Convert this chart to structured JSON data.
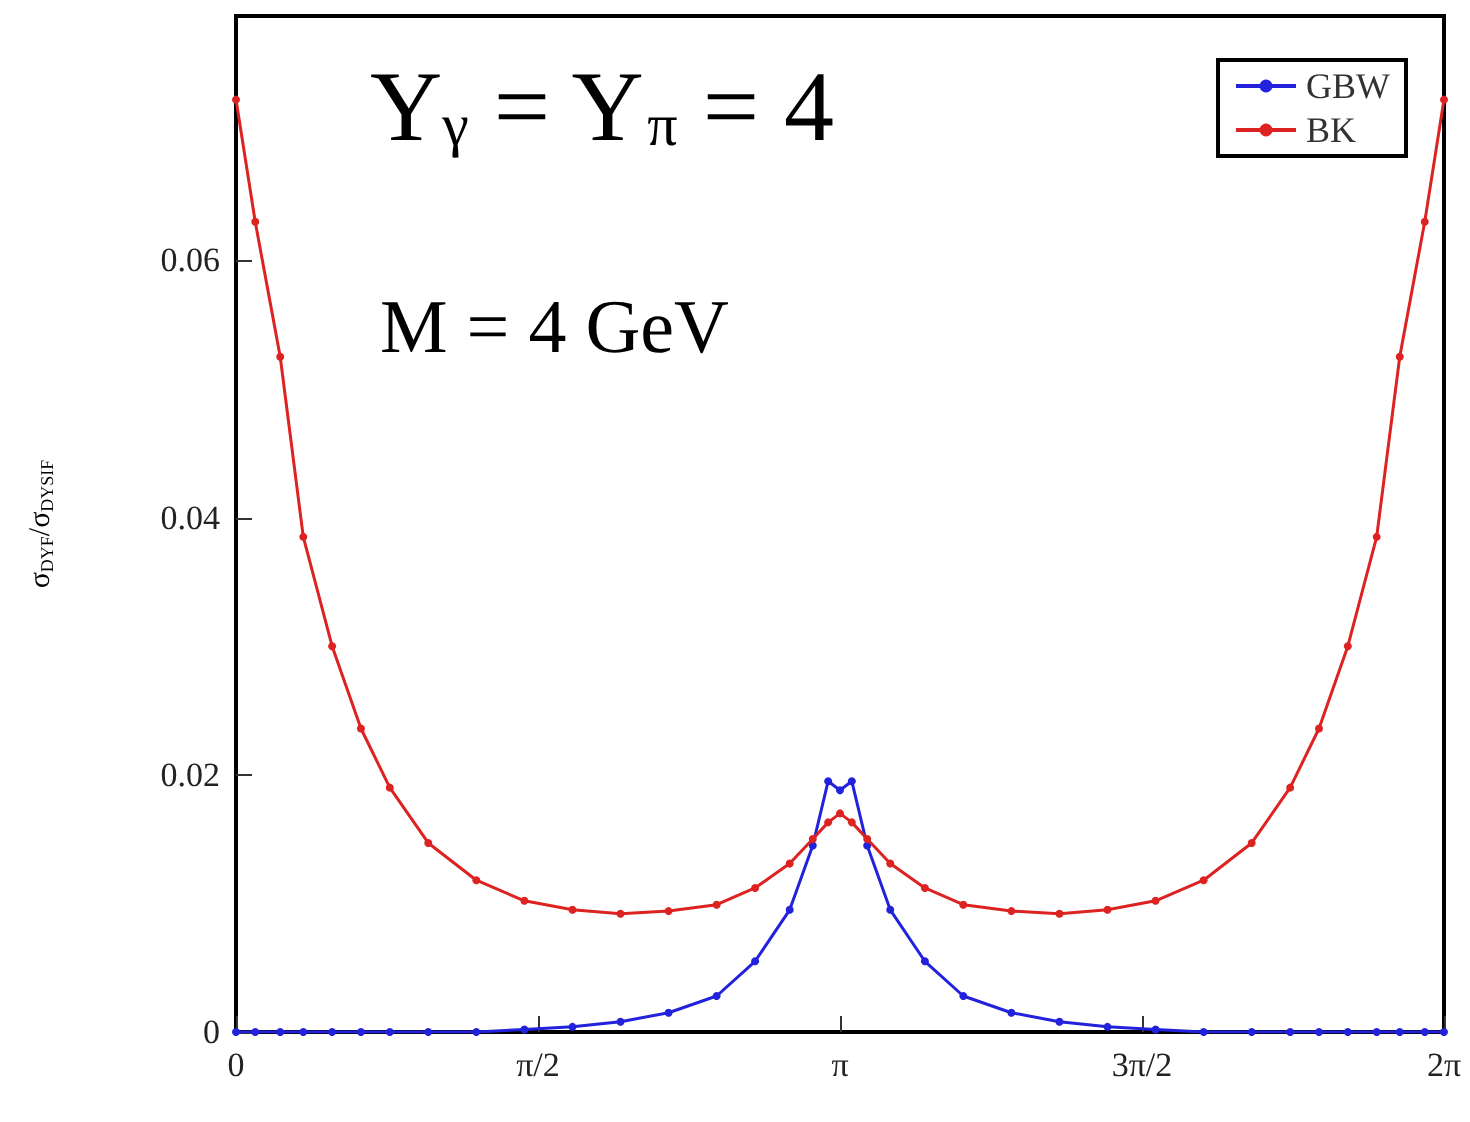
{
  "chart_data": {
    "type": "line",
    "ylabel": "σ$_{DYF}$/σ$_{DYSIF}$",
    "annotations": [
      "Y$_{γ}$ = Y$_{π}$ = 4",
      "M = 4 GeV"
    ],
    "x": [
      0,
      0.1,
      0.23,
      0.35,
      0.5,
      0.65,
      0.8,
      1.0,
      1.25,
      1.5,
      1.75,
      2.0,
      2.25,
      2.5,
      2.7,
      2.88,
      3.0,
      3.08,
      3.1416,
      3.203,
      3.283,
      3.403,
      3.583,
      3.783,
      4.033,
      4.283,
      4.533,
      4.783,
      5.033,
      5.283,
      5.483,
      5.633,
      5.783,
      5.933,
      6.053,
      6.183,
      6.2832
    ],
    "series": [
      {
        "name": "GBW",
        "color": "#2222dd",
        "values": [
          0,
          0,
          0,
          0,
          0,
          0,
          0,
          0,
          0,
          0.0002,
          0.0004,
          0.0008,
          0.0015,
          0.0028,
          0.0055,
          0.0095,
          0.0145,
          0.0195,
          0.0188,
          0.0195,
          0.0145,
          0.0095,
          0.0055,
          0.0028,
          0.0015,
          0.0008,
          0.0004,
          0.0002,
          0,
          0,
          0,
          0,
          0,
          0,
          0,
          0,
          0
        ]
      },
      {
        "name": "BK",
        "color": "#dd2222",
        "values": [
          0.0725,
          0.063,
          0.0525,
          0.0385,
          0.03,
          0.0236,
          0.019,
          0.0147,
          0.0118,
          0.0102,
          0.0095,
          0.0092,
          0.0094,
          0.0099,
          0.0112,
          0.0131,
          0.015,
          0.0163,
          0.017,
          0.0163,
          0.015,
          0.0131,
          0.0112,
          0.0099,
          0.0094,
          0.0092,
          0.0095,
          0.0102,
          0.0118,
          0.0147,
          0.019,
          0.0236,
          0.03,
          0.0385,
          0.0525,
          0.063,
          0.0725
        ]
      }
    ],
    "xlim": [
      0,
      6.2832
    ],
    "xticks": [
      0,
      {
        "value": 1.5708,
        "label": "π/2"
      },
      {
        "value": 3.1416,
        "label": "π"
      },
      {
        "value": 4.7124,
        "label": "3π/2"
      },
      {
        "value": 6.2832,
        "label": "2π"
      }
    ],
    "ylim": [
      0,
      0.079
    ],
    "yticks": [
      0,
      0.02,
      0.04,
      0.06
    ],
    "grid": false,
    "legend": "top right",
    "marker": "circle",
    "line_style": "solid"
  }
}
